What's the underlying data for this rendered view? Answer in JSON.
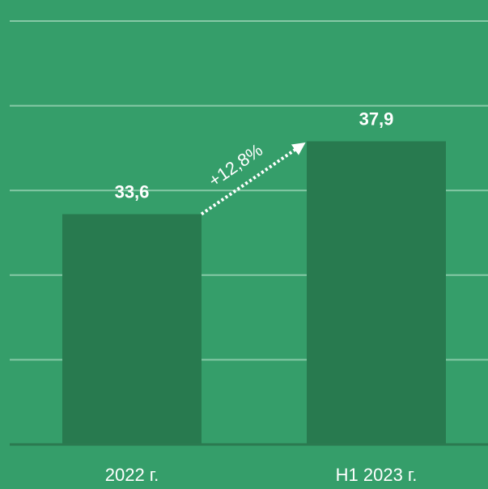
{
  "chart_data": {
    "type": "bar",
    "categories": [
      "2022 г.",
      "H1 2023 г."
    ],
    "values": [
      33.6,
      37.9
    ],
    "value_labels": [
      "33,6",
      "37,9"
    ],
    "color": "#287a4f",
    "ylim": [
      20,
      45
    ],
    "yticks": [
      25,
      30,
      35,
      40,
      45
    ],
    "grid": true,
    "annotation": "+12,8%"
  }
}
